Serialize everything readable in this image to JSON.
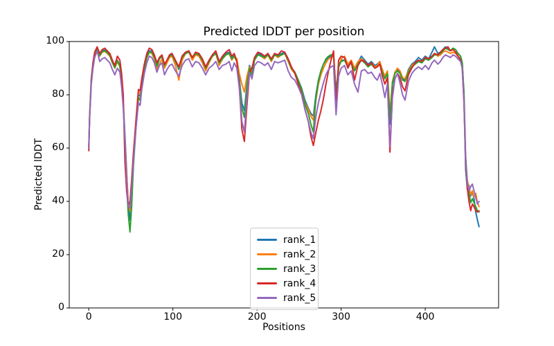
{
  "figure": {
    "background": "#ffffff",
    "axis_color": "#000000",
    "legend_border_color": "#cccccc"
  },
  "chart_data": {
    "type": "line",
    "title": "Predicted lDDT per position",
    "xlabel": "Positions",
    "ylabel": "Predicted lDDT",
    "xlim": [
      -23.2,
      487.2
    ],
    "ylim": [
      0,
      100
    ],
    "xticks": [
      0,
      100,
      200,
      300,
      400
    ],
    "yticks": [
      0,
      20,
      40,
      60,
      80,
      100
    ],
    "grid": false,
    "legend_position": "lower center-left inside axes",
    "x": [
      0,
      1,
      3,
      5,
      7,
      10,
      13,
      16,
      19,
      22,
      25,
      28,
      31,
      34,
      37,
      39,
      41,
      43,
      45,
      47,
      49,
      51,
      53,
      56,
      59,
      61,
      63,
      66,
      69,
      72,
      75,
      78,
      81,
      84,
      87,
      90,
      93,
      96,
      99,
      103,
      107,
      111,
      115,
      119,
      123,
      127,
      131,
      135,
      139,
      143,
      147,
      151,
      155,
      159,
      163,
      167,
      170,
      173,
      176,
      179,
      182,
      185,
      188,
      191,
      194,
      197,
      201,
      205,
      209,
      213,
      217,
      221,
      225,
      229,
      233,
      237,
      241,
      245,
      249,
      253,
      257,
      261,
      264,
      267,
      270,
      273,
      276,
      279,
      282,
      285,
      288,
      291,
      294,
      297,
      300,
      304,
      308,
      312,
      316,
      320,
      324,
      328,
      332,
      336,
      340,
      343,
      346,
      349,
      352,
      355,
      358,
      361,
      364,
      367,
      370,
      373,
      376,
      380,
      384,
      388,
      392,
      396,
      400,
      404,
      408,
      411,
      415,
      418,
      421,
      424,
      427,
      430,
      433,
      436,
      439,
      442,
      444,
      446,
      448,
      450,
      452,
      454,
      456,
      458,
      460,
      462,
      464
    ],
    "series": [
      {
        "name": "rank_1",
        "color": "#1f77b4",
        "values": [
          60.5,
          72,
          86,
          92,
          95.5,
          97.5,
          95,
          96.5,
          96.8,
          96,
          95,
          92.5,
          90.5,
          93,
          91,
          85,
          77,
          65,
          52,
          38,
          33,
          40,
          55,
          68,
          80,
          79.5,
          84.5,
          90,
          94.5,
          96.5,
          96.5,
          94,
          90.5,
          93.5,
          94.5,
          90.5,
          92.5,
          95,
          95.5,
          92.5,
          89.5,
          94.5,
          96,
          96.5,
          93.5,
          95.5,
          95.5,
          92.5,
          89.5,
          92.5,
          95,
          96,
          91.5,
          94,
          95.5,
          96,
          93.5,
          95,
          93,
          86,
          77,
          74,
          84,
          91,
          89,
          93.5,
          95.5,
          95,
          94,
          95.5,
          93,
          95.5,
          94.5,
          95.5,
          96,
          93,
          90,
          88.5,
          85.5,
          82.5,
          78,
          75,
          73,
          72,
          80,
          85.5,
          89,
          91.5,
          93,
          94,
          94.5,
          95,
          81,
          91,
          93,
          93,
          91,
          92.5,
          89.5,
          92,
          94.5,
          93,
          91.5,
          92.5,
          91,
          91.5,
          92.5,
          89,
          86.5,
          88.5,
          69,
          84,
          88,
          89.5,
          88.5,
          86,
          85.5,
          89.5,
          91.5,
          92.5,
          94,
          93,
          94.5,
          93.5,
          96,
          98,
          95.5,
          96,
          97,
          98,
          97.5,
          96.5,
          97.5,
          97,
          95.5,
          94.5,
          92,
          80,
          52,
          44.5,
          46,
          42,
          43.5,
          41,
          36,
          33,
          30.5
        ]
      },
      {
        "name": "rank_2",
        "color": "#ff7f0e",
        "values": [
          60.5,
          72,
          85.5,
          91.5,
          95,
          97,
          94.5,
          96,
          96.3,
          95.5,
          94.5,
          92,
          90,
          92.5,
          90.5,
          84.5,
          76,
          64,
          51,
          39,
          36.5,
          43,
          57,
          69,
          81,
          80.5,
          85,
          90.5,
          94,
          96,
          95.5,
          93.5,
          89.5,
          91.5,
          93.5,
          90,
          92,
          94,
          94.5,
          91,
          85.5,
          93,
          95.5,
          96,
          93,
          95,
          94.5,
          92,
          89,
          92,
          94.5,
          95.5,
          91,
          93.5,
          95,
          95.5,
          93,
          94.5,
          93.5,
          88,
          84,
          81,
          87,
          90.5,
          88.5,
          93,
          95,
          94.5,
          93.5,
          95,
          92.5,
          95,
          94,
          95,
          95.5,
          92.5,
          89.5,
          88,
          85,
          82,
          77,
          74.5,
          72,
          70.5,
          78,
          84,
          87.5,
          90,
          92,
          93.5,
          94,
          94.5,
          78.5,
          90,
          93.5,
          94.5,
          91.5,
          93,
          90,
          92.5,
          93.5,
          92.5,
          91,
          92,
          90.5,
          91,
          92.5,
          89.5,
          87,
          89,
          73,
          85,
          88.5,
          90,
          89,
          86.5,
          86,
          89,
          91,
          92,
          93,
          92.5,
          94,
          93,
          94.5,
          95.5,
          94.5,
          95,
          96,
          96.5,
          96,
          95.5,
          96,
          95.5,
          94.5,
          93.5,
          91,
          79,
          56,
          48,
          45,
          42.5,
          44,
          41.5,
          43,
          39.5,
          38
        ]
      },
      {
        "name": "rank_3",
        "color": "#2ca02c",
        "values": [
          60,
          71.5,
          85.5,
          91.5,
          95.2,
          97.2,
          94.8,
          96.2,
          96.5,
          95.8,
          94.8,
          92.2,
          90.2,
          92.8,
          90.8,
          84.5,
          76,
          63,
          46,
          35,
          28.5,
          38,
          53,
          67,
          79,
          78,
          83.5,
          89.5,
          94,
          96,
          96,
          94,
          91,
          93.5,
          94.5,
          91,
          93,
          94.5,
          95,
          92.5,
          90,
          94,
          95.5,
          96,
          94,
          95.5,
          95,
          93,
          90,
          92.5,
          94.5,
          95.5,
          92,
          93.5,
          95,
          95.5,
          93.5,
          94.5,
          92.5,
          85,
          75,
          71.5,
          83,
          90,
          87.5,
          93,
          95,
          94.5,
          94,
          95,
          93,
          95,
          94.5,
          95,
          95.5,
          93,
          90,
          88.5,
          85.5,
          82,
          76.5,
          73,
          69,
          66,
          79,
          85,
          89,
          91.5,
          93.5,
          94.5,
          95,
          95,
          80.5,
          90.5,
          92.5,
          93,
          90.5,
          92,
          89,
          91.5,
          93,
          92,
          90.5,
          91.5,
          90,
          90.5,
          91.5,
          88.5,
          86,
          88,
          71,
          84.5,
          88,
          89,
          88,
          85.5,
          85,
          88.5,
          90.5,
          91.5,
          92.5,
          92,
          93.5,
          93,
          94,
          95,
          95,
          95.5,
          96.5,
          97.5,
          97,
          96.5,
          97.5,
          97,
          95.5,
          94.5,
          92,
          81,
          57,
          47,
          43,
          39.5,
          41,
          39.5,
          38,
          36.5,
          36
        ]
      },
      {
        "name": "rank_4",
        "color": "#d62728",
        "values": [
          59,
          71,
          85,
          92,
          96,
          98,
          95.5,
          97,
          97.5,
          96.5,
          95.5,
          93,
          91,
          94.5,
          93,
          88,
          80,
          55,
          44,
          38.5,
          40,
          48,
          58,
          70,
          82,
          81.5,
          86,
          91.5,
          95.5,
          97.5,
          97,
          95,
          92,
          94,
          95,
          91.5,
          93,
          95,
          95.5,
          93,
          90.5,
          94.5,
          96,
          96.5,
          94,
          96,
          95.5,
          93.5,
          90.5,
          93,
          95,
          96.5,
          92.5,
          94.5,
          96,
          97,
          94.5,
          95.5,
          92.5,
          83,
          67,
          62.5,
          76,
          88,
          90,
          94,
          96,
          95.5,
          94.5,
          95.5,
          93.5,
          95.5,
          95,
          96.5,
          96,
          93.5,
          90.5,
          88,
          84,
          80.5,
          74.5,
          70,
          64.5,
          61,
          66,
          70.5,
          74,
          78.5,
          84,
          89,
          93,
          96.5,
          76,
          93,
          94.5,
          94,
          90,
          92.5,
          85.5,
          91,
          93,
          92.5,
          91,
          92,
          90,
          90.5,
          91.5,
          87,
          84,
          86.5,
          58.5,
          80,
          86,
          88,
          86.5,
          83,
          81.5,
          87.5,
          90,
          92,
          93,
          92.5,
          94,
          93.5,
          94.5,
          95.5,
          95,
          96,
          97,
          97.5,
          98,
          96.5,
          97,
          96,
          94.5,
          93,
          90,
          77,
          54,
          45,
          40,
          36.5,
          39,
          38,
          36.5,
          36,
          36.5
        ]
      },
      {
        "name": "rank_5",
        "color": "#9467bd",
        "values": [
          60,
          71,
          84,
          90,
          94,
          96.5,
          92.5,
          93.5,
          94,
          93,
          92,
          89.5,
          87.5,
          90,
          88.5,
          83,
          75,
          63,
          48,
          38,
          37.5,
          45,
          55,
          67,
          77,
          76,
          82,
          88,
          92,
          94.5,
          94,
          92,
          88.5,
          91,
          92,
          87.5,
          89.5,
          91,
          91.5,
          89,
          87,
          91,
          93,
          93.5,
          90.5,
          92.5,
          92,
          90,
          87.5,
          90,
          91,
          92.5,
          89.5,
          91,
          91.5,
          92.5,
          89,
          92,
          90,
          82.5,
          70,
          66,
          79,
          88.5,
          86,
          91,
          92.5,
          92,
          91,
          92,
          89.5,
          92.5,
          92,
          92.5,
          93,
          89,
          86.5,
          85.5,
          83,
          80,
          74.5,
          70,
          66,
          63.5,
          72,
          77,
          81,
          84.5,
          87.5,
          89.5,
          90.5,
          91,
          72.5,
          87,
          90,
          91,
          87.5,
          89,
          84,
          81,
          89,
          89.5,
          88,
          88.5,
          86.5,
          85.5,
          88,
          84,
          79,
          84,
          60.5,
          79,
          86,
          88,
          84.5,
          80,
          78,
          85,
          88,
          89.5,
          90.5,
          89.5,
          91,
          89.5,
          92,
          93,
          91.5,
          92.5,
          94,
          95,
          94.5,
          94,
          95,
          94.5,
          93.5,
          92.5,
          90,
          78,
          55,
          46.5,
          44,
          45.5,
          46.5,
          44,
          41.5,
          39,
          40
        ]
      }
    ]
  }
}
